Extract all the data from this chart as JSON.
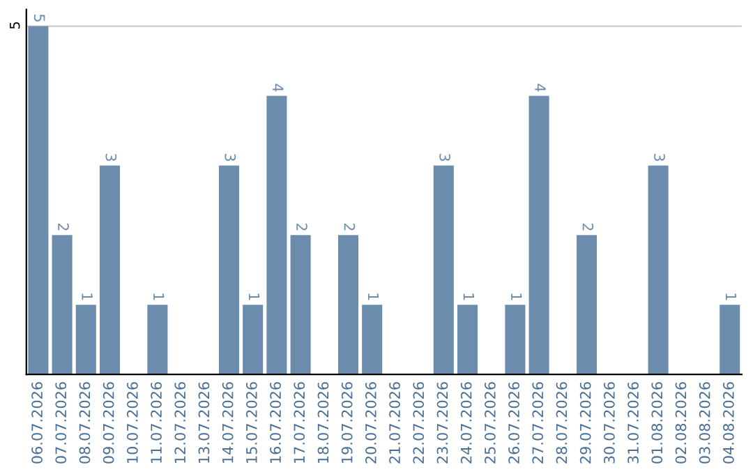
{
  "chart_data": {
    "type": "bar",
    "categories": [
      "06.07.2026",
      "07.07.2026",
      "08.07.2026",
      "09.07.2026",
      "10.07.2026",
      "11.07.2026",
      "12.07.2026",
      "13.07.2026",
      "14.07.2026",
      "15.07.2026",
      "16.07.2026",
      "17.07.2026",
      "18.07.2026",
      "19.07.2026",
      "20.07.2026",
      "21.07.2026",
      "22.07.2026",
      "23.07.2026",
      "24.07.2026",
      "25.07.2026",
      "26.07.2026",
      "27.07.2026",
      "28.07.2026",
      "29.07.2026",
      "30.07.2026",
      "31.07.2026",
      "01.08.2026",
      "02.08.2026",
      "03.08.2026",
      "04.08.2026"
    ],
    "values": [
      5,
      2,
      1,
      3,
      0,
      1,
      0,
      0,
      3,
      1,
      4,
      2,
      0,
      2,
      1,
      0,
      0,
      3,
      1,
      0,
      1,
      4,
      0,
      2,
      0,
      0,
      3,
      0,
      0,
      1
    ],
    "value_labels": [
      "5",
      "2",
      "1",
      "3",
      null,
      "1",
      null,
      null,
      "3",
      "1",
      "4",
      "2",
      null,
      "2",
      "1",
      null,
      null,
      "3",
      "1",
      null,
      "1",
      "4",
      null,
      "2",
      null,
      null,
      "3",
      null,
      null,
      "1"
    ],
    "color": "#6b8cac",
    "ylim": [
      0,
      5.24
    ],
    "yticks": [
      5
    ],
    "grid": "y",
    "legend": false
  }
}
